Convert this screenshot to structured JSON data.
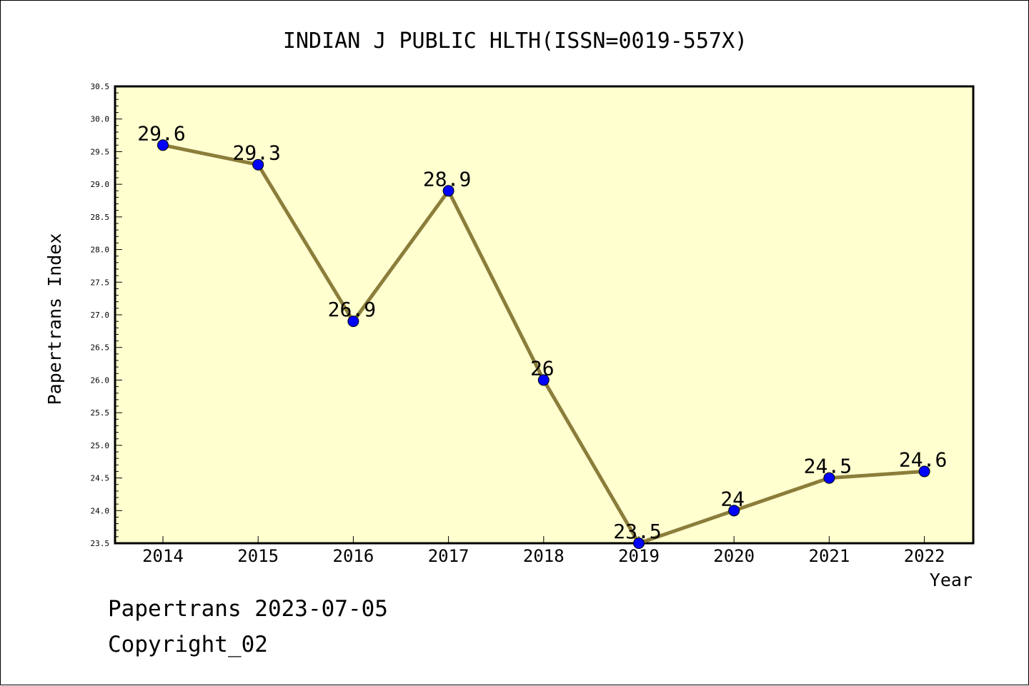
{
  "chart_data": {
    "type": "line",
    "title": "INDIAN J PUBLIC HLTH(ISSN=0019-557X)",
    "xlabel": "Year",
    "ylabel": "Papertrans Index",
    "categories": [
      "2014",
      "2015",
      "2016",
      "2017",
      "2018",
      "2019",
      "2020",
      "2021",
      "2022"
    ],
    "values": [
      29.6,
      29.3,
      26.9,
      28.9,
      26,
      23.5,
      24,
      24.5,
      24.6
    ],
    "data_labels": [
      "29.6",
      "29.3",
      "26.9",
      "28.9",
      "26",
      "23.5",
      "24",
      "24.5",
      "24.6"
    ],
    "ylim": [
      23.5,
      30.5
    ],
    "yticks": [
      "23.5",
      "24.0",
      "24.5",
      "25.0",
      "25.5",
      "26.0",
      "26.5",
      "27.0",
      "27.5",
      "28.0",
      "28.5",
      "29.0",
      "29.5",
      "30.0",
      "30.5"
    ],
    "grid": false,
    "colors": {
      "plot_background": "#ffffd0",
      "line": "#8b7d3a",
      "marker": "#0000ff",
      "axis": "#000000"
    }
  },
  "footer": {
    "date_line": "Papertrans 2023-07-05",
    "copyright": "Copyright_02"
  }
}
